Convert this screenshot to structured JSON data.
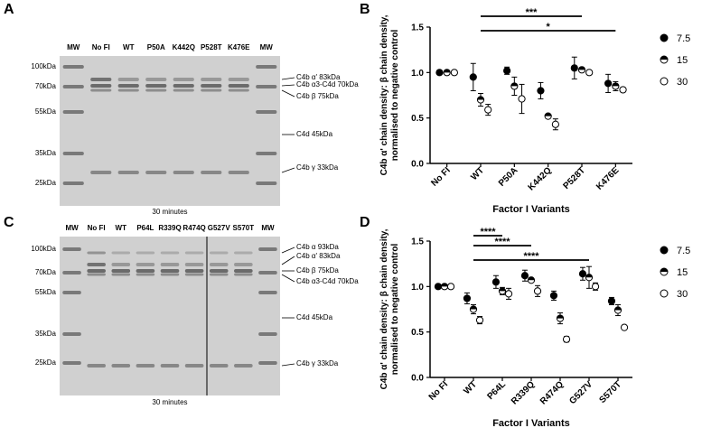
{
  "panels": {
    "A": "A",
    "B": "B",
    "C": "C",
    "D": "D"
  },
  "gel_A": {
    "lanes": [
      "MW",
      "No FI",
      "WT",
      "P50A",
      "K442Q",
      "P528T",
      "K476E",
      "MW"
    ],
    "mw_markers": [
      "100kDa",
      "70kDa",
      "55kDa",
      "35kDa",
      "25kDa"
    ],
    "band_labels": [
      "C4b α' 83kDa",
      "C4b α3-C4d 70kDa",
      "C4b β 75kDa",
      "C4d 45kDa",
      "C4b γ 33kDa"
    ],
    "caption": "30 minutes"
  },
  "gel_C": {
    "lanes": [
      "MW",
      "No FI",
      "WT",
      "P64L",
      "R339Q",
      "R474Q",
      "G527V",
      "S570T",
      "MW"
    ],
    "mw_markers": [
      "100kDa",
      "70kDa",
      "55kDa",
      "35kDa",
      "25kDa"
    ],
    "band_labels": [
      "C4b α 93kDa",
      "C4b α' 83kDa",
      "C4b β 75kDa",
      "C4b α3-C4d 70kDa",
      "C4d 45kDa",
      "C4b γ 33kDa"
    ],
    "caption": "30 minutes"
  },
  "chart_data": [
    {
      "type": "scatter",
      "panel": "B",
      "xlabel": "Factor I Variants",
      "ylabel": "C4b α' chain density: β chain density, normalised to negative control",
      "categories": [
        "No FI",
        "WT",
        "P50A",
        "K442Q",
        "P528T",
        "K476E"
      ],
      "ylim": [
        0,
        1.5
      ],
      "yticks": [
        "0.0",
        "0.5",
        "1.0",
        "1.5"
      ],
      "series": [
        {
          "name": "7.5",
          "values": [
            1.0,
            0.95,
            1.02,
            0.8,
            1.05,
            0.88
          ],
          "errors": [
            0,
            0.15,
            0.04,
            0.09,
            0.12,
            0.1
          ]
        },
        {
          "name": "15",
          "values": [
            1.0,
            0.7,
            0.85,
            0.52,
            1.03,
            0.85
          ],
          "errors": [
            0,
            0.07,
            0.1,
            0.02,
            0.02,
            0.05
          ]
        },
        {
          "name": "30",
          "values": [
            1.0,
            0.59,
            0.71,
            0.43,
            1.0,
            0.81
          ],
          "errors": [
            0,
            0.06,
            0.16,
            0.06,
            0.02,
            0.02
          ]
        }
      ],
      "significance": [
        {
          "from": "WT",
          "to": "P528T",
          "label": "***"
        },
        {
          "from": "WT",
          "to": "K476E",
          "label": "*"
        }
      ],
      "legend": "right"
    },
    {
      "type": "scatter",
      "panel": "D",
      "xlabel": "Factor I Variants",
      "ylabel": "C4b α' chain density: β chain density, normalised to negative control",
      "categories": [
        "No FI",
        "WT",
        "P64L",
        "R339Q",
        "R474Q",
        "G527V",
        "S570T"
      ],
      "ylim": [
        0,
        1.5
      ],
      "yticks": [
        "0.0",
        "0.5",
        "1.0",
        "1.5"
      ],
      "series": [
        {
          "name": "7.5",
          "values": [
            1.0,
            0.87,
            1.05,
            1.12,
            0.9,
            1.14,
            0.84
          ],
          "errors": [
            0,
            0.06,
            0.07,
            0.06,
            0.05,
            0.07,
            0.04
          ]
        },
        {
          "name": "15",
          "values": [
            1.0,
            0.75,
            0.95,
            1.07,
            0.65,
            1.1,
            0.74
          ],
          "errors": [
            0,
            0.05,
            0.04,
            0.02,
            0.06,
            0.12,
            0.06
          ]
        },
        {
          "name": "30",
          "values": [
            1.0,
            0.63,
            0.92,
            0.95,
            0.42,
            1.0,
            0.55
          ],
          "errors": [
            0,
            0.04,
            0.06,
            0.06,
            0.03,
            0.04,
            0.02
          ]
        }
      ],
      "significance": [
        {
          "from": "WT",
          "to": "P64L",
          "label": "****"
        },
        {
          "from": "WT",
          "to": "R339Q",
          "label": "****"
        },
        {
          "from": "WT",
          "to": "G527V",
          "label": "****"
        }
      ],
      "legend": "right"
    }
  ]
}
